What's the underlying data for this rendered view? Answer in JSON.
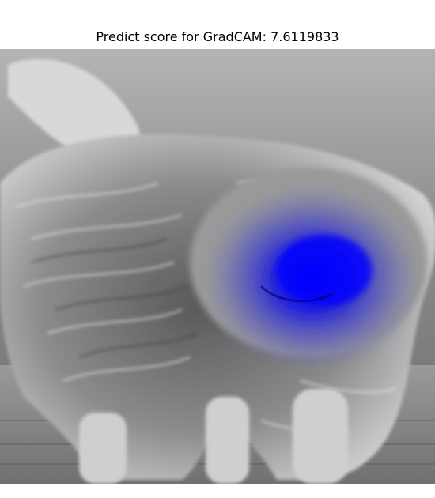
{
  "figure": {
    "title": "Predict score for GradCAM: 7.6119833"
  },
  "image": {
    "subject": "dog",
    "colors": {
      "background": "#ffffff",
      "heatmap": "#0000ff"
    }
  }
}
